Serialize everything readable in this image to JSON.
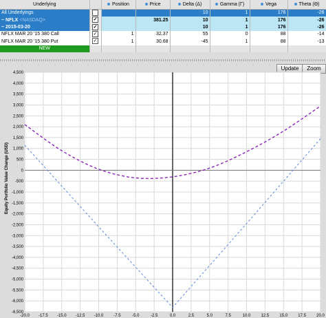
{
  "columns": {
    "underlying": "Underlying",
    "position": "Position",
    "price": "Price",
    "delta": "Delta (Δ)",
    "gamma": "Gamma (Γ)",
    "vega": "Vega",
    "theta": "Theta (Θ)"
  },
  "rows": {
    "all": {
      "label": "All Underlyings",
      "checked": "✓",
      "position": "",
      "price": "",
      "delta": "10",
      "gamma": "1",
      "vega": "176",
      "theta": "-26"
    },
    "nflx": {
      "prefix": "− NFLX",
      "exchange": "<NASDAQ>",
      "checked": "✓",
      "position": "",
      "price": "381.25",
      "delta": "10",
      "gamma": "1",
      "vega": "176",
      "theta": "-26"
    },
    "expiry": {
      "label": "− 2015-03-20",
      "checked": "✓",
      "position": "",
      "price": "",
      "delta": "10",
      "gamma": "1",
      "vega": "176",
      "theta": "-26"
    },
    "options": [
      {
        "label": "NFLX MAR 20 '15 380 Call",
        "checked": "✓",
        "position": "1",
        "price": "32.37",
        "delta": "55",
        "gamma": "0",
        "vega": "88",
        "theta": "-14"
      },
      {
        "label": "NFLX MAR 20 '15 380 Put",
        "checked": "✓",
        "position": "1",
        "price": "30.68",
        "delta": "-45",
        "gamma": "1",
        "vega": "88",
        "theta": "-13"
      }
    ],
    "new_label": "NEW"
  },
  "toolbar": {
    "update_label": "Update",
    "zoom_label": "Zoom"
  },
  "colors": {
    "selected_blue": "#2a7dc6",
    "row_light_blue": "#bde6f5",
    "new_green": "#1e9a1e",
    "curve_purple": "#8a28b8",
    "curve_blue": "#5b86d9"
  },
  "chart_data": {
    "type": "line",
    "ylabel": "Equity Portfolio Value Change (USD)",
    "xlabel": "",
    "xlim": [
      -20,
      20
    ],
    "ylim": [
      -6500,
      4500
    ],
    "xticks": [
      "-20.0",
      "-17.5",
      "-15.0",
      "-12.5",
      "-10.0",
      "-7.5",
      "-5.0",
      "-2.5",
      "0.0",
      "2.5",
      "5.0",
      "7.5",
      "10.0",
      "12.5",
      "15.0",
      "17.5",
      "20.0"
    ],
    "yticks": [
      "4,500",
      "4,000",
      "3,500",
      "3,000",
      "2,500",
      "2,000",
      "1,500",
      "1,000",
      "500",
      "0",
      "-500",
      "-1,000",
      "-1,500",
      "-2,000",
      "-2,500",
      "-3,000",
      "-3,500",
      "-4,000",
      "-4,500",
      "-5,000",
      "-5,500",
      "-6,000",
      "-6,500"
    ],
    "grid": true,
    "series": [
      {
        "style": "dashed",
        "color": "#8a28b8",
        "x": [
          -20,
          -15,
          -10,
          -5,
          0,
          5,
          10,
          15,
          20
        ],
        "y": [
          2100,
          900,
          50,
          -350,
          -300,
          100,
          850,
          1800,
          2950
        ]
      },
      {
        "style": "dashed",
        "color": "#5b86d9",
        "x": [
          -20,
          -10,
          0,
          10,
          20
        ],
        "y": [
          1150,
          -2600,
          -6300,
          -2450,
          1450
        ]
      }
    ]
  }
}
